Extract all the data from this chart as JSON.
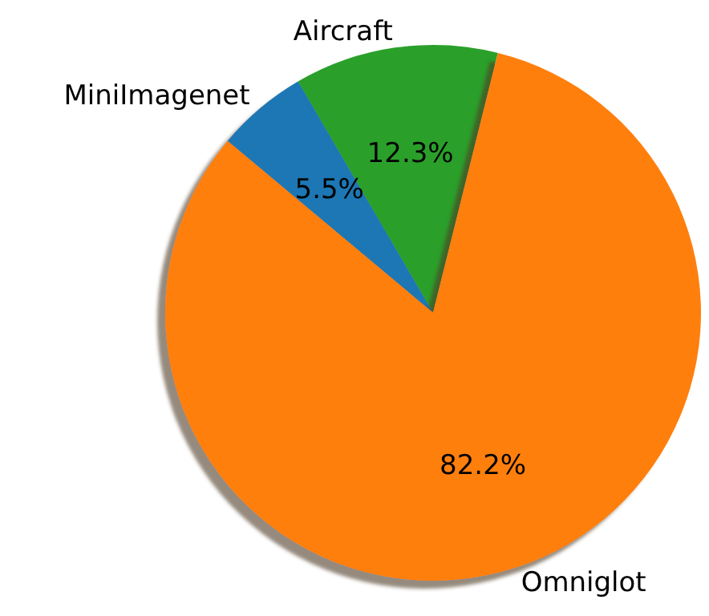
{
  "chart_data": {
    "type": "pie",
    "categories": [
      "Aircraft",
      "MiniImagenet",
      "Omniglot"
    ],
    "values": [
      12.3,
      5.5,
      82.2
    ],
    "colors": [
      "#2ca02c",
      "#1f77b4",
      "#ff7f0e"
    ],
    "value_labels": [
      "12.3%",
      "5.5%",
      "82.2%"
    ],
    "legend": false
  }
}
